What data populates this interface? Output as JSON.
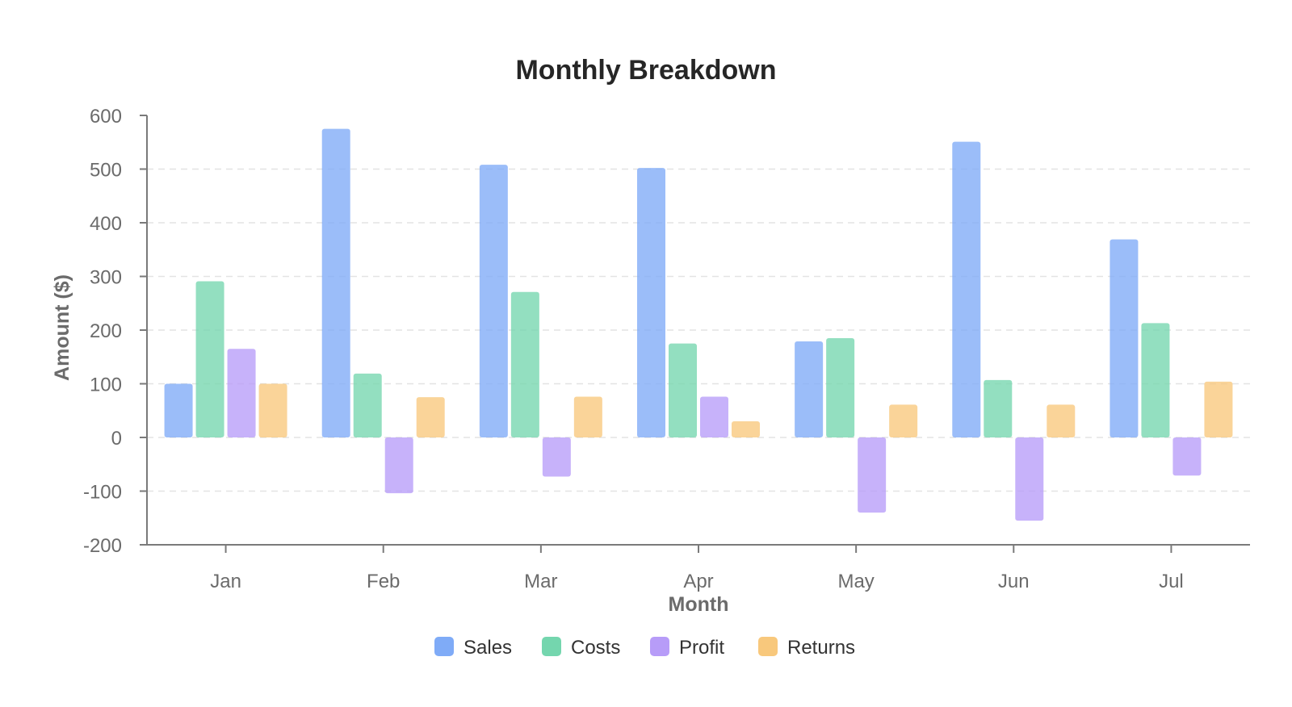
{
  "chart_data": {
    "type": "bar",
    "title": "Monthly Breakdown",
    "xlabel": "Month",
    "ylabel": "Amount ($)",
    "ylim": [
      -200,
      600
    ],
    "yticks": [
      600,
      500,
      400,
      300,
      200,
      100,
      0,
      -100,
      -200
    ],
    "grid": true,
    "legend_position": "bottom-center",
    "categories": [
      "Jan",
      "Feb",
      "Mar",
      "Apr",
      "May",
      "Jun",
      "Jul"
    ],
    "series": [
      {
        "name": "Sales",
        "color": "#7fabf7",
        "values": [
          100,
          575,
          508,
          502,
          179,
          551,
          369
        ]
      },
      {
        "name": "Costs",
        "color": "#74d6ae",
        "values": [
          291,
          119,
          271,
          175,
          185,
          107,
          213
        ]
      },
      {
        "name": "Profit",
        "color": "#b79cf8",
        "values": [
          165,
          -104,
          -73,
          76,
          -140,
          -155,
          -71
        ]
      },
      {
        "name": "Returns",
        "color": "#f8c87c",
        "values": [
          100,
          75,
          76,
          30,
          61,
          61,
          104
        ]
      }
    ]
  }
}
